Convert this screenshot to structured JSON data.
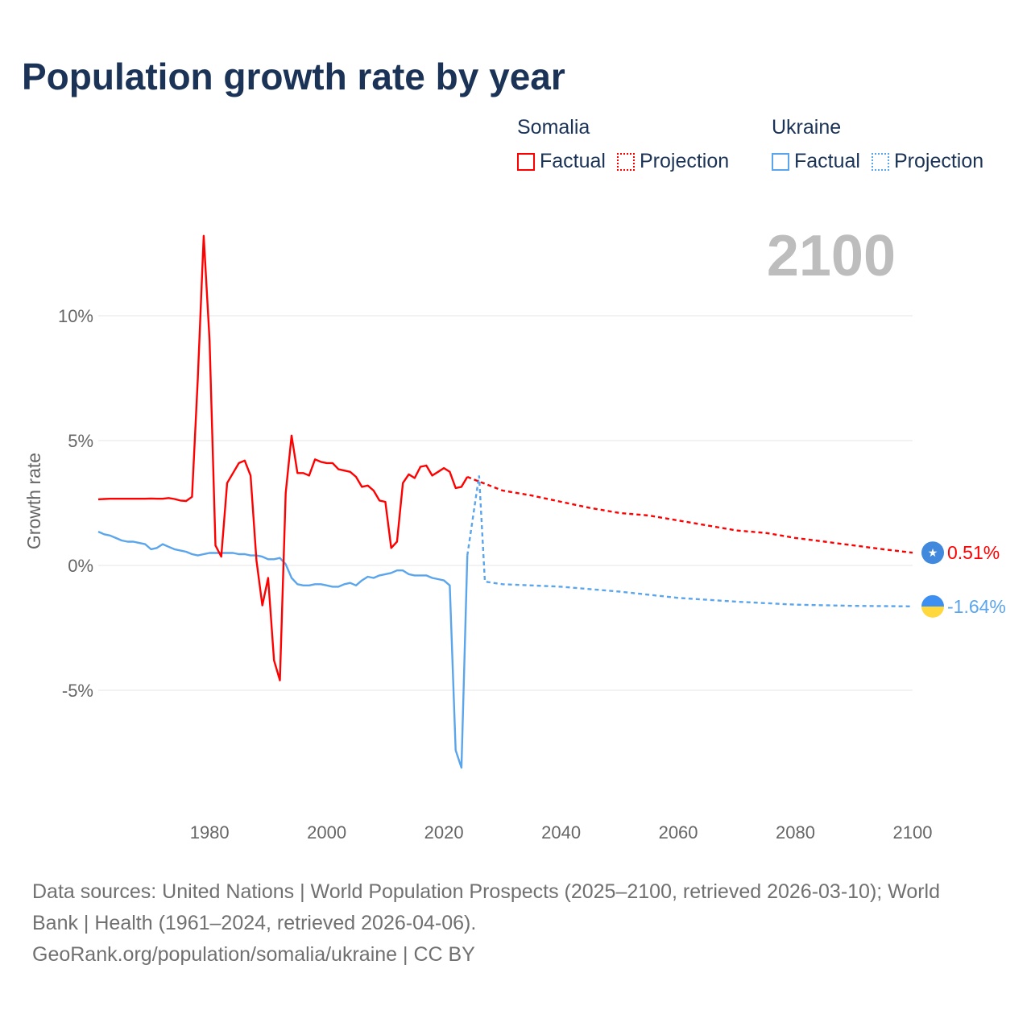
{
  "title": "Population growth rate by year",
  "legend": {
    "groups": [
      {
        "name": "Somalia",
        "factual": "Factual",
        "projection": "Projection",
        "color": "#ff0000"
      },
      {
        "name": "Ukraine",
        "factual": "Factual",
        "projection": "Projection",
        "color": "#5aa5ec"
      }
    ]
  },
  "footer": {
    "sources": "Data sources: United Nations | World Population Prospects (2025–2100, retrieved 2026-03-10); World Bank | Health (1961–2024, retrieved 2026-04-06).",
    "link": "GeoRank.org/population/somalia/ukraine | CC BY"
  },
  "chart_data": {
    "type": "line",
    "title": "Population growth rate by year",
    "year_label": "2100",
    "xlabel": "",
    "ylabel": "Growth rate",
    "xlim": [
      1961,
      2100
    ],
    "ylim": [
      -9.5,
      14
    ],
    "x_ticks": [
      1980,
      2000,
      2020,
      2040,
      2060,
      2080,
      2100
    ],
    "x_tick_labels": [
      "1980",
      "2000",
      "2020",
      "2040",
      "2060",
      "2080",
      "2100"
    ],
    "y_ticks": [
      10,
      5,
      0,
      -5
    ],
    "y_tick_labels": [
      "10%",
      "5%",
      "0%",
      "-5%"
    ],
    "grid": true,
    "series": [
      {
        "name": "Somalia",
        "color": "#ff0000",
        "end_label": "0.51%",
        "factual": {
          "x": [
            1961,
            1962,
            1963,
            1964,
            1965,
            1966,
            1967,
            1968,
            1969,
            1970,
            1971,
            1972,
            1973,
            1974,
            1975,
            1976,
            1977,
            1978,
            1979,
            1980,
            1981,
            1982,
            1983,
            1984,
            1985,
            1986,
            1987,
            1988,
            1989,
            1990,
            1991,
            1992,
            1993,
            1994,
            1995,
            1996,
            1997,
            1998,
            1999,
            2000,
            2001,
            2002,
            2003,
            2004,
            2005,
            2006,
            2007,
            2008,
            2009,
            2010,
            2011,
            2012,
            2013,
            2014,
            2015,
            2016,
            2017,
            2018,
            2019,
            2020,
            2021,
            2022,
            2023,
            2024
          ],
          "y": [
            2.65,
            2.66,
            2.67,
            2.67,
            2.67,
            2.67,
            2.67,
            2.67,
            2.67,
            2.68,
            2.67,
            2.67,
            2.7,
            2.66,
            2.6,
            2.58,
            2.75,
            7.5,
            13.2,
            9.0,
            0.8,
            0.35,
            3.3,
            3.7,
            4.1,
            4.2,
            3.6,
            0.2,
            -1.6,
            -0.5,
            -3.8,
            -4.6,
            2.9,
            5.2,
            3.7,
            3.7,
            3.6,
            4.25,
            4.15,
            4.1,
            4.1,
            3.85,
            3.8,
            3.75,
            3.55,
            3.15,
            3.2,
            3.0,
            2.6,
            2.55,
            0.7,
            0.95,
            3.3,
            3.65,
            3.5,
            3.95,
            4.0,
            3.6,
            3.75,
            3.9,
            3.75,
            3.1,
            3.15,
            3.55
          ]
        },
        "projection": {
          "x": [
            2024,
            2025,
            2030,
            2035,
            2040,
            2045,
            2050,
            2055,
            2060,
            2065,
            2070,
            2075,
            2080,
            2085,
            2090,
            2095,
            2100
          ],
          "y": [
            3.55,
            3.45,
            3.0,
            2.8,
            2.55,
            2.3,
            2.1,
            2.0,
            1.8,
            1.6,
            1.4,
            1.3,
            1.1,
            0.95,
            0.8,
            0.65,
            0.51
          ]
        }
      },
      {
        "name": "Ukraine",
        "color": "#5aa5ec",
        "end_label": "-1.64%",
        "factual": {
          "x": [
            1961,
            1962,
            1963,
            1964,
            1965,
            1966,
            1967,
            1968,
            1969,
            1970,
            1971,
            1972,
            1973,
            1974,
            1975,
            1976,
            1977,
            1978,
            1979,
            1980,
            1981,
            1982,
            1983,
            1984,
            1985,
            1986,
            1987,
            1988,
            1989,
            1990,
            1991,
            1992,
            1993,
            1994,
            1995,
            1996,
            1997,
            1998,
            1999,
            2000,
            2001,
            2002,
            2003,
            2004,
            2005,
            2006,
            2007,
            2008,
            2009,
            2010,
            2011,
            2012,
            2013,
            2014,
            2015,
            2016,
            2017,
            2018,
            2019,
            2020,
            2021,
            2022,
            2023,
            2024
          ],
          "y": [
            1.35,
            1.25,
            1.2,
            1.1,
            1.0,
            0.95,
            0.95,
            0.9,
            0.85,
            0.65,
            0.7,
            0.85,
            0.75,
            0.65,
            0.6,
            0.55,
            0.45,
            0.4,
            0.45,
            0.5,
            0.5,
            0.5,
            0.5,
            0.5,
            0.45,
            0.45,
            0.4,
            0.4,
            0.35,
            0.25,
            0.25,
            0.3,
            0.05,
            -0.5,
            -0.75,
            -0.8,
            -0.8,
            -0.75,
            -0.75,
            -0.8,
            -0.85,
            -0.85,
            -0.75,
            -0.7,
            -0.8,
            -0.6,
            -0.45,
            -0.5,
            -0.4,
            -0.35,
            -0.3,
            -0.2,
            -0.2,
            -0.35,
            -0.4,
            -0.4,
            -0.4,
            -0.5,
            -0.55,
            -0.6,
            -0.8,
            -7.4,
            -8.1,
            0.4
          ]
        },
        "projection": {
          "x": [
            2024,
            2025,
            2026,
            2027,
            2030,
            2040,
            2050,
            2060,
            2070,
            2080,
            2090,
            2100
          ],
          "y": [
            0.4,
            2.0,
            3.6,
            -0.65,
            -0.75,
            -0.85,
            -1.05,
            -1.3,
            -1.45,
            -1.57,
            -1.62,
            -1.64
          ]
        }
      }
    ]
  }
}
